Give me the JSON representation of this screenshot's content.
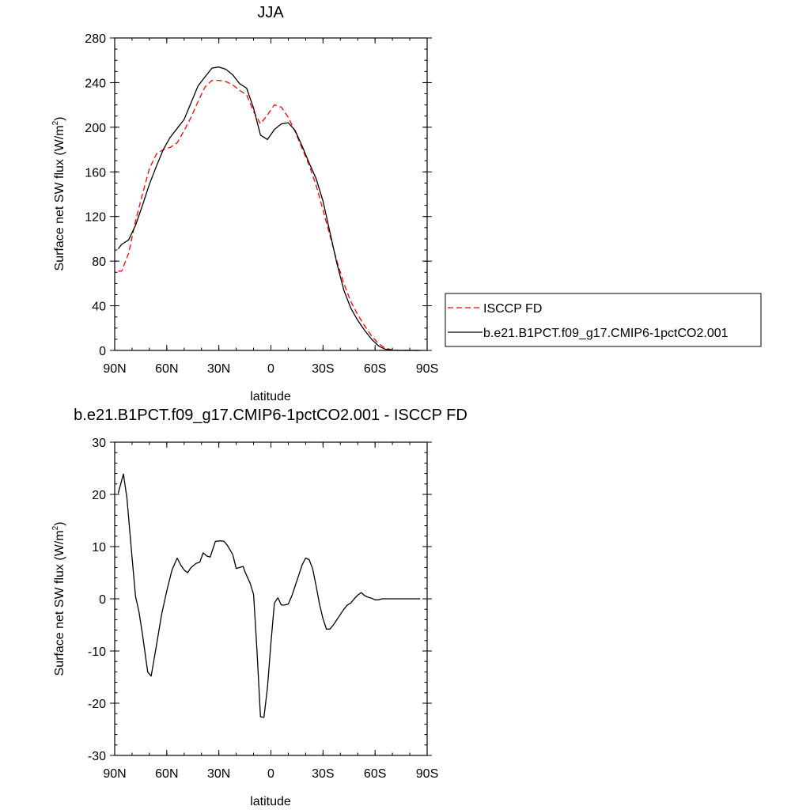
{
  "colors": {
    "model": "#000000",
    "obs": "#ff0000",
    "frame": "#000000",
    "background": "#ffffff"
  },
  "chart_data": [
    {
      "type": "line",
      "title": "JJA",
      "xlabel": "latitude",
      "ylabel_main": "Surface net SW flux (W/m",
      "ylabel_sup": "2",
      "ylabel_tail": ")",
      "xlim": [
        90,
        -90
      ],
      "ylim": [
        0,
        280
      ],
      "x_ticks": [
        90,
        60,
        30,
        0,
        -30,
        -60,
        -90
      ],
      "x_tick_labels": [
        "90N",
        "60N",
        "30N",
        "0",
        "30S",
        "60S",
        "90S"
      ],
      "y_ticks": [
        0,
        40,
        80,
        120,
        160,
        200,
        240,
        280
      ],
      "y_tick_labels": [
        "0",
        "40",
        "80",
        "120",
        "160",
        "200",
        "240",
        "280"
      ],
      "legend_position": "right",
      "series": [
        {
          "name": "ISCCP FD",
          "style": "dashed",
          "x": [
            88,
            86,
            82,
            78,
            74,
            70,
            66,
            62,
            58,
            54,
            50,
            46,
            42,
            38,
            34,
            30,
            26,
            22,
            18,
            14,
            10,
            6,
            2,
            -2,
            -6,
            -10,
            -14,
            -18,
            -22,
            -26,
            -30,
            -34,
            -38,
            -42,
            -46,
            -50,
            -54,
            -58,
            -62,
            -66,
            -70,
            -74,
            -78,
            -82,
            -86
          ],
          "values": [
            71,
            71,
            87,
            116,
            140,
            163,
            176,
            180,
            182,
            186,
            197,
            209,
            223,
            236,
            242,
            242,
            241,
            238,
            233,
            229,
            214,
            203,
            211,
            220,
            218,
            209,
            196,
            181,
            166,
            148,
            126,
            103,
            80,
            60,
            44,
            32,
            22,
            13,
            6,
            2,
            0.5,
            0,
            0,
            0,
            0
          ]
        },
        {
          "name": "b.e21.B1PCT.f09_g17.CMIP6-1pctCO2.001",
          "style": "solid",
          "x": [
            88,
            86,
            82,
            78,
            74,
            70,
            66,
            62,
            58,
            54,
            50,
            46,
            42,
            38,
            34,
            30,
            26,
            22,
            18,
            14,
            10,
            6,
            2,
            -2,
            -6,
            -10,
            -14,
            -18,
            -22,
            -26,
            -30,
            -34,
            -38,
            -42,
            -46,
            -50,
            -54,
            -58,
            -62,
            -66,
            -70,
            -74,
            -78,
            -82,
            -86
          ],
          "values": [
            91,
            95,
            99,
            112,
            130,
            149,
            165,
            180,
            191,
            199,
            207,
            222,
            237,
            245,
            253,
            254,
            252,
            247,
            239,
            235,
            217,
            193,
            189,
            198,
            203,
            204,
            197,
            183,
            168,
            154,
            134,
            106,
            78,
            54,
            38,
            27,
            18,
            10,
            4,
            1,
            0.3,
            0,
            0,
            0,
            0
          ]
        }
      ]
    },
    {
      "type": "line",
      "title": "b.e21.B1PCT.f09_g17.CMIP6-1pctCO2.001 - ISCCP FD",
      "xlabel": "latitude",
      "ylabel_main": "Surface net SW flux (W/m",
      "ylabel_sup": "2",
      "ylabel_tail": ")",
      "xlim": [
        90,
        -90
      ],
      "ylim": [
        -30,
        30
      ],
      "x_ticks": [
        90,
        60,
        30,
        0,
        -30,
        -60,
        -90
      ],
      "x_tick_labels": [
        "90N",
        "60N",
        "30N",
        "0",
        "30S",
        "60S",
        "90S"
      ],
      "y_ticks": [
        -30,
        -20,
        -10,
        0,
        10,
        20,
        30
      ],
      "y_tick_labels": [
        "-30",
        "-20",
        "-10",
        "0",
        "10",
        "20",
        "30"
      ],
      "series": [
        {
          "style": "solid",
          "x": [
            88,
            85,
            83,
            80,
            78,
            76,
            74,
            71,
            69,
            66,
            63,
            60,
            57,
            54,
            52,
            50,
            48,
            46,
            43,
            41,
            39,
            37,
            35,
            32,
            29,
            27,
            25,
            22,
            20,
            18,
            16,
            15,
            12,
            10,
            8,
            6,
            4,
            2,
            0,
            -2,
            -4,
            -6,
            -8,
            -10,
            -12,
            -14,
            -16,
            -18,
            -20,
            -22,
            -24,
            -26,
            -28,
            -30,
            -32,
            -34,
            -36,
            -38,
            -40,
            -42,
            -44,
            -46,
            -48,
            -50,
            -52,
            -54,
            -56,
            -58,
            -60,
            -62,
            -64,
            -66,
            -68,
            -70,
            -74,
            -78,
            -82,
            -86
          ],
          "values": [
            20.2,
            23.9,
            19.4,
            8,
            0.5,
            -2.5,
            -6.8,
            -14,
            -14.8,
            -9,
            -3,
            1.5,
            5.5,
            7.8,
            6.5,
            5.5,
            5,
            6,
            6.8,
            7,
            8.8,
            8.2,
            8,
            11,
            11.1,
            11,
            10.2,
            8.5,
            5.8,
            6,
            6.2,
            5.2,
            3,
            0.8,
            -10,
            -22.6,
            -22.7,
            -17,
            -8.5,
            -0.8,
            0.2,
            -1.2,
            -1.2,
            -1,
            0.5,
            2.5,
            4.5,
            6.5,
            7.8,
            7.5,
            5.8,
            2.5,
            -1,
            -3.8,
            -5.8,
            -5.8,
            -5,
            -4,
            -3,
            -2,
            -1.2,
            -0.8,
            0,
            0.7,
            1.2,
            0.6,
            0.3,
            0.1,
            -0.2,
            -0.2,
            0,
            0,
            0,
            0,
            0,
            0,
            0,
            0
          ]
        }
      ]
    }
  ]
}
